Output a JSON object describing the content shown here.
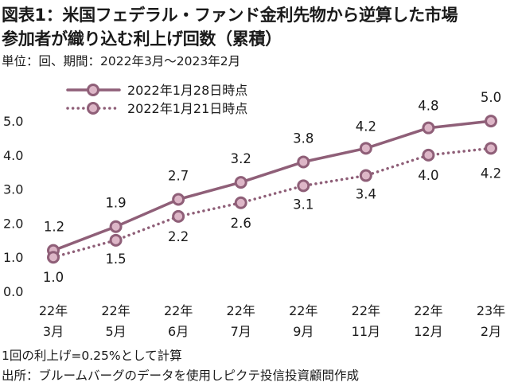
{
  "header": {
    "title_line1": "図表1：米国フェデラル・ファンド金利先物から逆算した市場",
    "title_line2": "参加者が織り込む利上げ回数（累積）",
    "subtitle": "単位：回、期間：2022年3月～2023年2月"
  },
  "footer": {
    "note": "1回の利上げ=0.25%として計算",
    "source": "出所：ブルームバーグのデータを使用しピクテ投信投資顧問作成"
  },
  "chart_data": {
    "type": "line",
    "categories": [
      [
        "22年",
        "3月"
      ],
      [
        "22年",
        "5月"
      ],
      [
        "22年",
        "6月"
      ],
      [
        "22年",
        "7月"
      ],
      [
        "22年",
        "9月"
      ],
      [
        "22年",
        "11月"
      ],
      [
        "22年",
        "12月"
      ],
      [
        "23年",
        "2月"
      ]
    ],
    "series": [
      {
        "name": "2022年1月28日時点",
        "style": "solid",
        "values": [
          1.2,
          1.9,
          2.7,
          3.2,
          3.8,
          4.2,
          4.8,
          5.0
        ],
        "labels": [
          "1.2",
          "1.9",
          "2.7",
          "3.2",
          "3.8",
          "4.2",
          "4.8",
          "5.0"
        ]
      },
      {
        "name": "2022年1月21日時点",
        "style": "dotted",
        "values": [
          1.0,
          1.5,
          2.2,
          2.6,
          3.1,
          3.4,
          4.0,
          4.2
        ],
        "labels": [
          "1.0",
          "1.5",
          "2.2",
          "2.6",
          "3.1",
          "3.4",
          "4.0",
          "4.2"
        ]
      }
    ],
    "yticks": [
      "0.0",
      "1.0",
      "2.0",
      "3.0",
      "4.0",
      "5.0"
    ],
    "ylim": [
      0,
      5.4
    ],
    "legend_position": "top-left",
    "grid": false,
    "colors": {
      "line": "#8f5f78",
      "marker_fill": "#ddb6c7"
    }
  }
}
